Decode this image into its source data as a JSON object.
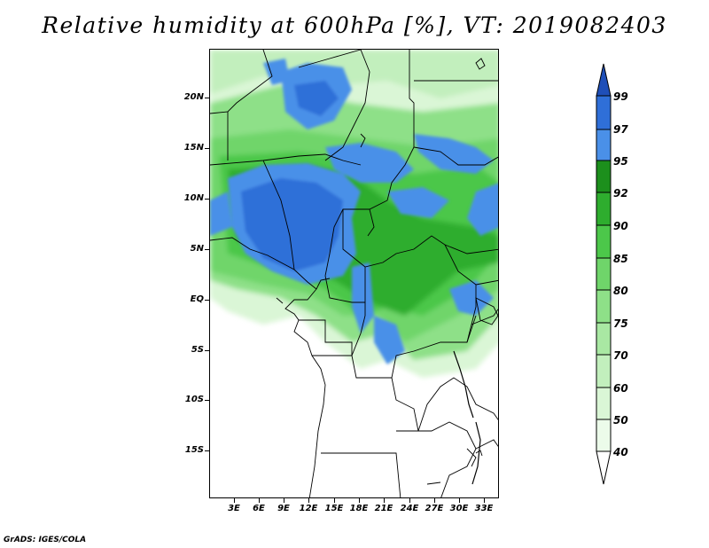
{
  "title": "Relative humidity at 600hPa [%], VT: 2019082403",
  "footer": "GrADS: IGES/COLA",
  "map": {
    "lat_ticks": [
      "20N",
      "15N",
      "10N",
      "5N",
      "EQ",
      "5S",
      "10S",
      "15S"
    ],
    "lon_ticks": [
      "3E",
      "6E",
      "9E",
      "12E",
      "15E",
      "18E",
      "21E",
      "24E",
      "27E",
      "30E",
      "33E"
    ]
  },
  "colorbar": {
    "levels": [
      "40",
      "50",
      "60",
      "70",
      "75",
      "80",
      "85",
      "90",
      "92",
      "95",
      "97",
      "99"
    ],
    "colors": {
      "below_40": "#ffffff",
      "40_50": "#ecfbea",
      "50_60": "#daf6d6",
      "60_70": "#c2efbd",
      "70_75": "#a9e8a3",
      "75_80": "#8ee088",
      "80_85": "#6fd56a",
      "85_90": "#4cc74a",
      "90_92": "#2ead2e",
      "92_95": "#1c8f1c",
      "95_97": "#4a90e8",
      "97_99": "#2f6fd8",
      "above_99": "#1f4fb8"
    }
  }
}
